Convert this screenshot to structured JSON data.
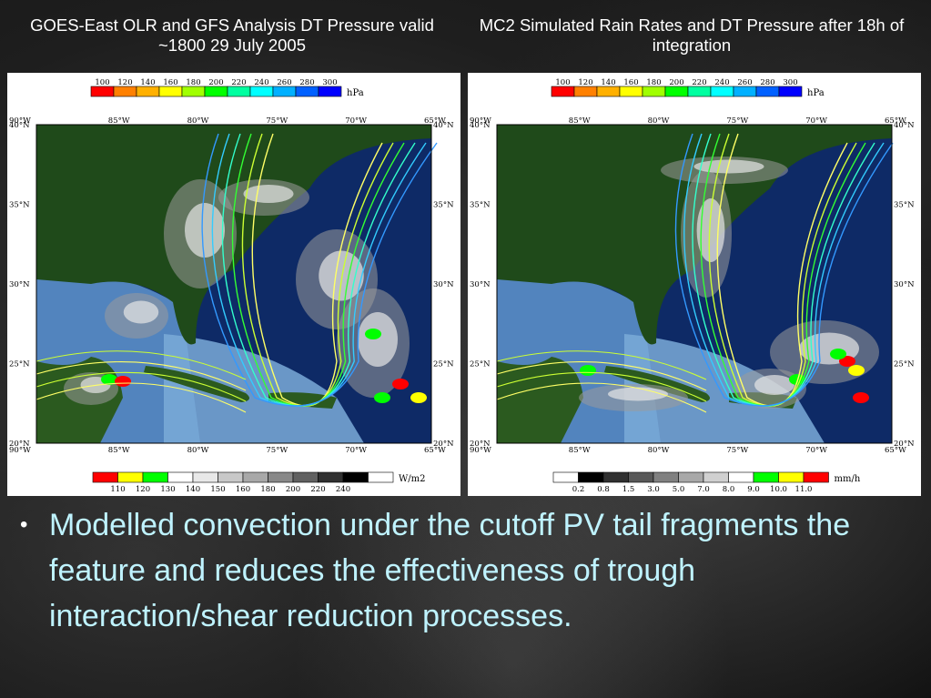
{
  "slide": {
    "left_title": "GOES-East OLR and GFS Analysis DT Pressure valid ~1800 29 July 2005",
    "right_title": "MC2 Simulated Rain Rates and DT Pressure after 18h of integration",
    "bullet": "Modelled convection under the cutoff PV tail fragments the feature and reduces the effectiveness of trough interaction/shear reduction processes."
  },
  "left_map": {
    "pressure_scale": {
      "labels": [
        "100",
        "120",
        "140",
        "160",
        "180",
        "200",
        "220",
        "240",
        "260",
        "280",
        "300"
      ],
      "colors": [
        "#ff0000",
        "#ff8000",
        "#ffb000",
        "#ffff00",
        "#a0ff00",
        "#00ff00",
        "#00ffa0",
        "#00ffff",
        "#00b0ff",
        "#0060ff",
        "#0000ff"
      ],
      "unit": "hPa"
    },
    "lon_labels": [
      "90°W",
      "85°W",
      "80°W",
      "75°W",
      "70°W",
      "65°W"
    ],
    "lat_labels": [
      "40°N",
      "35°N",
      "30°N",
      "25°N",
      "20°N"
    ],
    "bottom_scale": {
      "labels": [
        "110",
        "120",
        "130",
        "140",
        "150",
        "160",
        "180",
        "200",
        "220",
        "240"
      ],
      "colors": [
        "#ff0000",
        "#ffff00",
        "#00ff00",
        "#ffffff",
        "#e8e8e8",
        "#c8c8c8",
        "#a8a8a8",
        "#888888",
        "#606060",
        "#303030",
        "#000000",
        "#ffffff"
      ],
      "unit": "W/m2"
    }
  },
  "right_map": {
    "pressure_scale": {
      "labels": [
        "100",
        "120",
        "140",
        "160",
        "180",
        "200",
        "220",
        "240",
        "260",
        "280",
        "300"
      ],
      "colors": [
        "#ff0000",
        "#ff8000",
        "#ffb000",
        "#ffff00",
        "#a0ff00",
        "#00ff00",
        "#00ffa0",
        "#00ffff",
        "#00b0ff",
        "#0060ff",
        "#0000ff"
      ],
      "unit": "hPa"
    },
    "lon_labels": [
      "90°W",
      "85°W",
      "80°W",
      "75°W",
      "70°W",
      "65°W"
    ],
    "lat_labels": [
      "40°N",
      "35°N",
      "30°N",
      "25°N",
      "20°N"
    ],
    "bottom_scale": {
      "labels": [
        "0.2",
        "0.8",
        "1.5",
        "3.0",
        "5.0",
        "7.0",
        "8.0",
        "9.0",
        "10.0",
        "11.0"
      ],
      "colors": [
        "#ffffff",
        "#000000",
        "#303030",
        "#585858",
        "#808080",
        "#a8a8a8",
        "#d0d0d0",
        "#ffffff",
        "#00ff00",
        "#ffff00",
        "#ff0000"
      ],
      "unit": "mm/h"
    }
  }
}
